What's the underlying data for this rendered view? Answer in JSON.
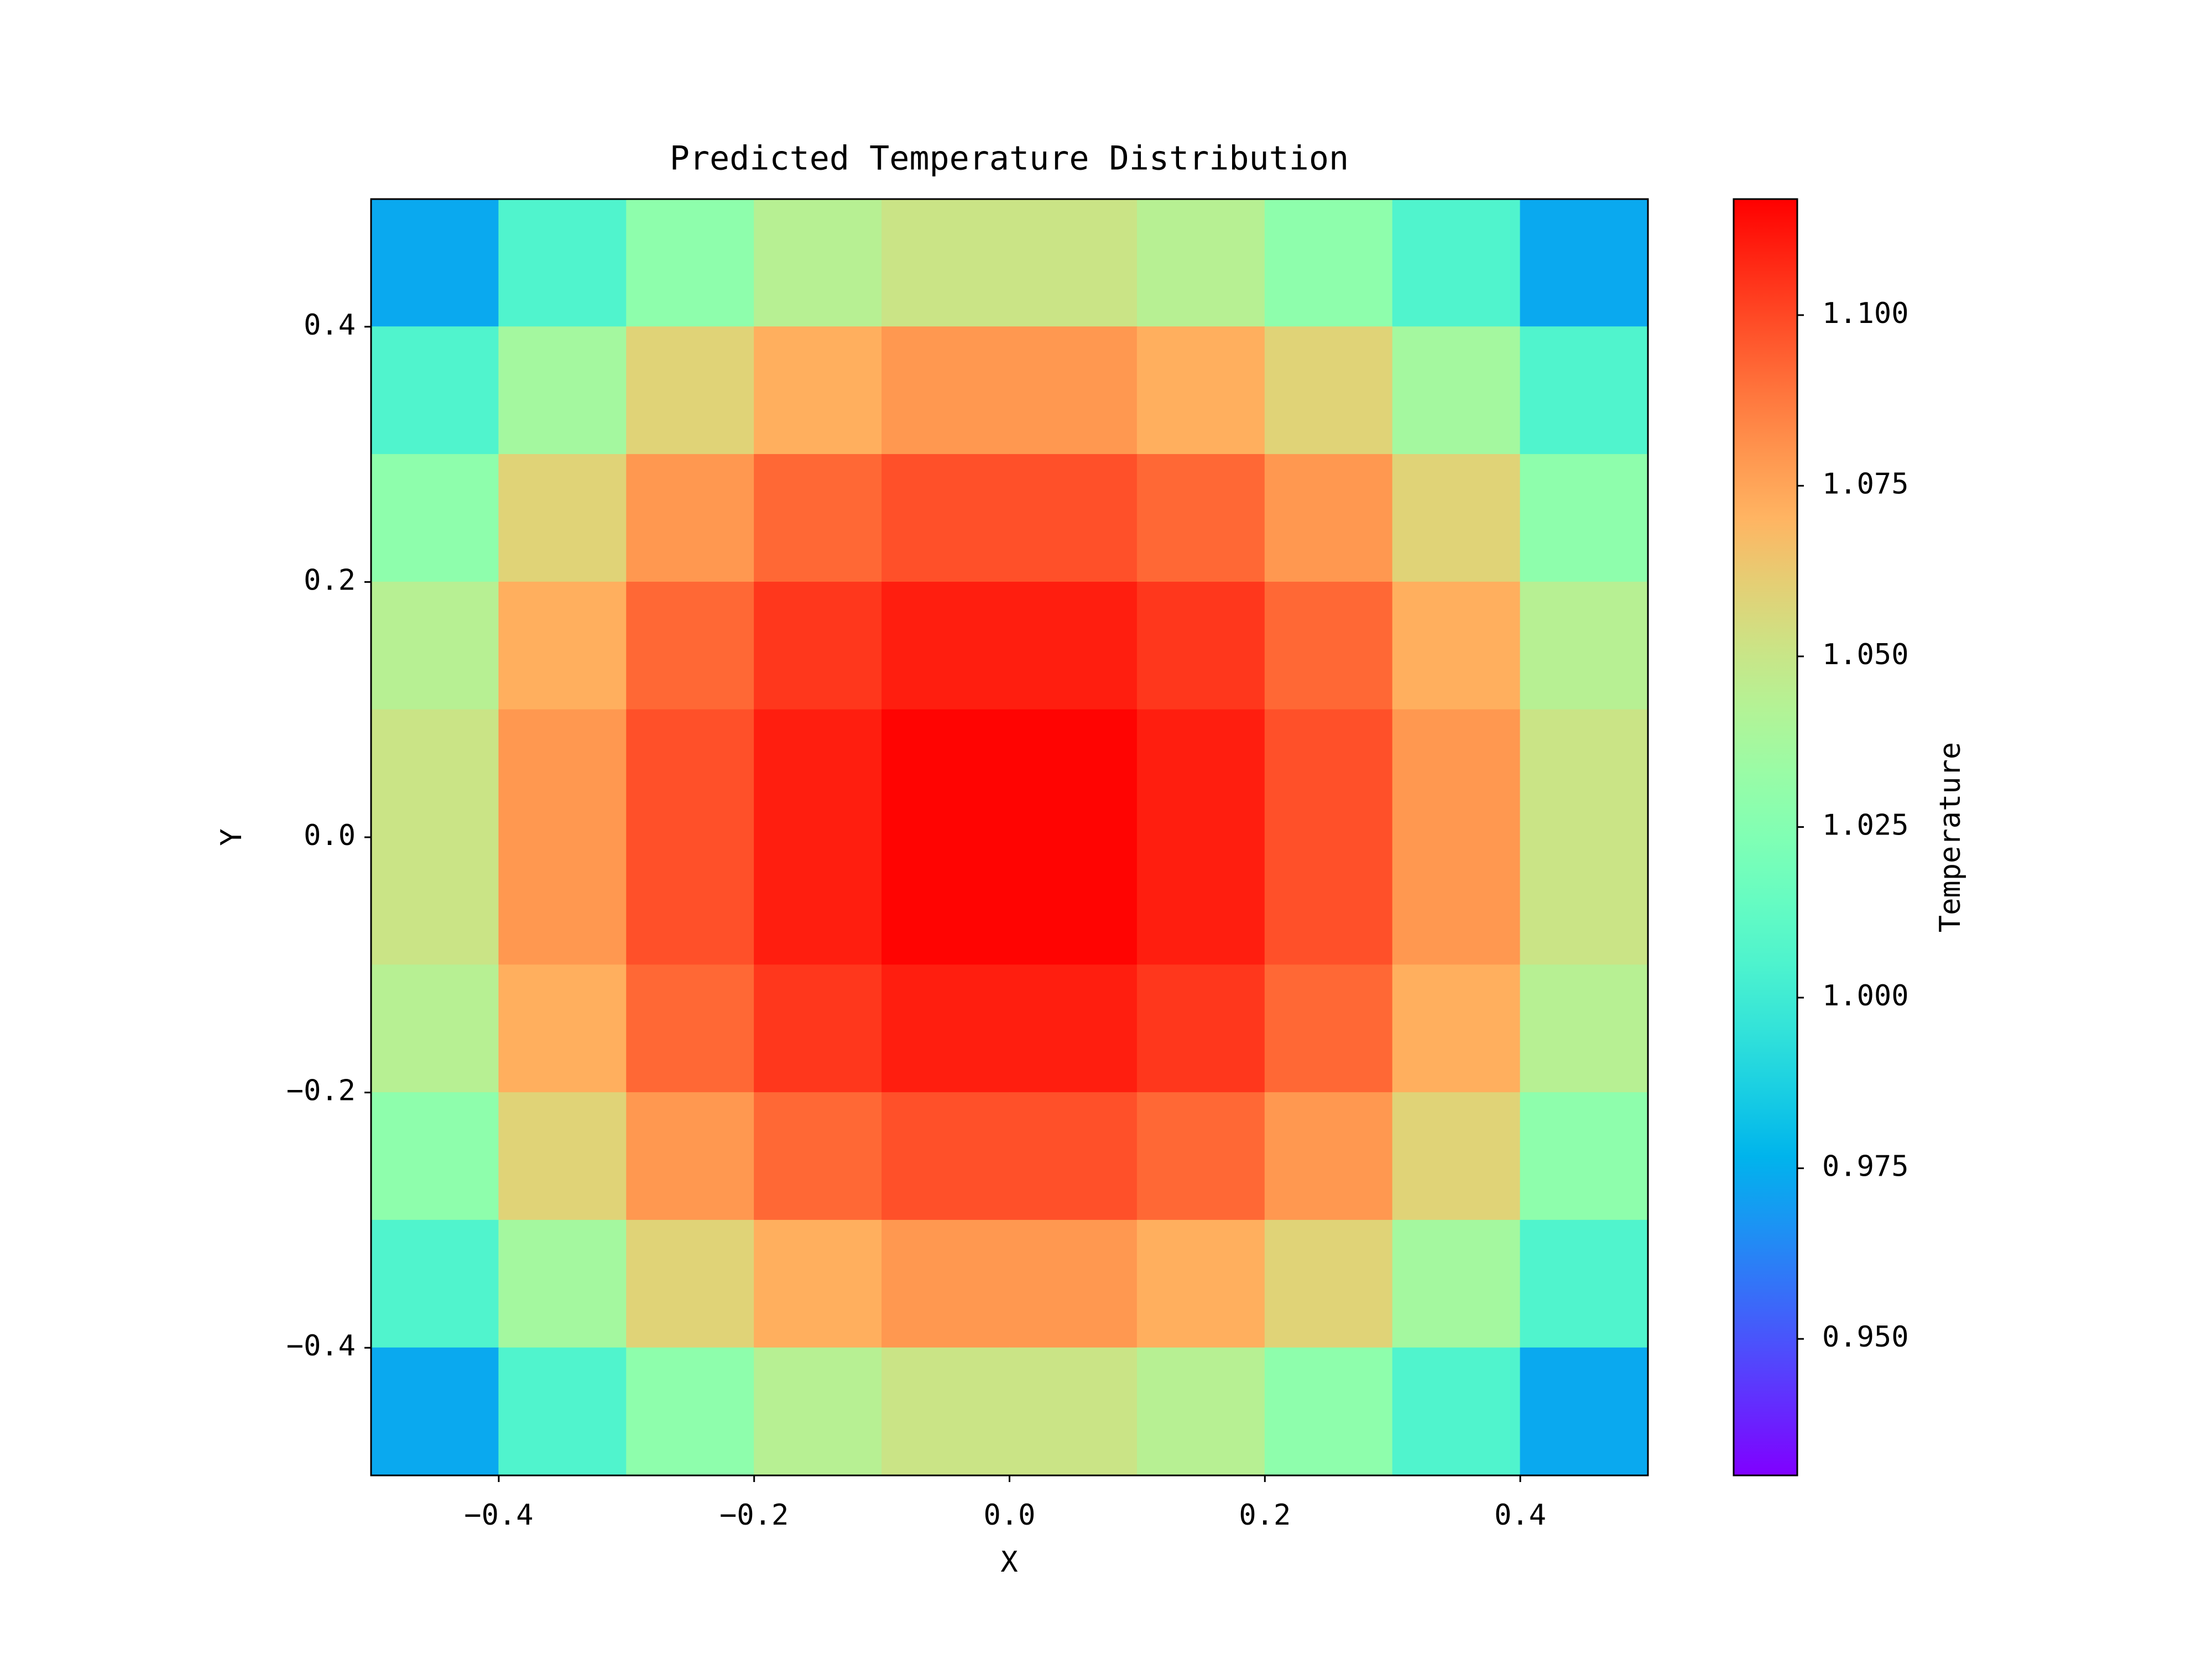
{
  "chart_data": {
    "type": "heatmap",
    "title": "Predicted Temperature Distribution",
    "x_label": "X",
    "y_label": "Y",
    "colorbar_label": "Temperature",
    "colormap": "rainbow",
    "x": [
      -0.45,
      -0.35,
      -0.25,
      -0.15,
      -0.05,
      0.05,
      0.15,
      0.25,
      0.35,
      0.45
    ],
    "y": [
      0.45,
      0.35,
      0.25,
      0.15,
      0.05,
      -0.05,
      -0.15,
      -0.25,
      -0.35,
      -0.45
    ],
    "z": [
      [
        0.973,
        1.006,
        1.029,
        1.044,
        1.051,
        1.051,
        1.044,
        1.029,
        1.006,
        0.973
      ],
      [
        1.006,
        1.037,
        1.059,
        1.072,
        1.079,
        1.079,
        1.072,
        1.059,
        1.037,
        1.006
      ],
      [
        1.029,
        1.059,
        1.079,
        1.092,
        1.098,
        1.098,
        1.092,
        1.079,
        1.059,
        1.029
      ],
      [
        1.044,
        1.072,
        1.092,
        1.104,
        1.11,
        1.11,
        1.104,
        1.092,
        1.072,
        1.044
      ],
      [
        1.051,
        1.079,
        1.098,
        1.11,
        1.116,
        1.116,
        1.11,
        1.098,
        1.079,
        1.051
      ],
      [
        1.051,
        1.079,
        1.098,
        1.11,
        1.116,
        1.116,
        1.11,
        1.098,
        1.079,
        1.051
      ],
      [
        1.044,
        1.072,
        1.092,
        1.104,
        1.11,
        1.11,
        1.104,
        1.092,
        1.072,
        1.044
      ],
      [
        1.029,
        1.059,
        1.079,
        1.092,
        1.098,
        1.098,
        1.092,
        1.079,
        1.059,
        1.029
      ],
      [
        1.006,
        1.037,
        1.059,
        1.072,
        1.079,
        1.079,
        1.072,
        1.059,
        1.037,
        1.006
      ],
      [
        0.973,
        1.006,
        1.029,
        1.044,
        1.051,
        1.051,
        1.044,
        1.029,
        1.006,
        0.973
      ]
    ],
    "xlim": [
      -0.5,
      0.5
    ],
    "ylim": [
      -0.5,
      0.5
    ],
    "xticks": [
      {
        "value": -0.4,
        "label": "−0.4"
      },
      {
        "value": -0.2,
        "label": "−0.2"
      },
      {
        "value": 0,
        "label": "0.0"
      },
      0.2,
      0.4
    ],
    "yticks": [
      {
        "value": -0.4,
        "label": "−0.4"
      },
      {
        "value": -0.2,
        "label": "−0.2"
      },
      {
        "value": 0,
        "label": "0.0"
      },
      0.2,
      0.4
    ],
    "clim": [
      0.93,
      1.117
    ],
    "cticks": [
      {
        "value": 0.95,
        "label": "0.950"
      },
      {
        "value": 0.975,
        "label": "0.975"
      },
      {
        "value": 1,
        "label": "1.000"
      },
      {
        "value": 1.025,
        "label": "1.025"
      },
      {
        "value": 1.05,
        "label": "1.050"
      },
      {
        "value": 1.075,
        "label": "1.075"
      },
      {
        "value": 1.1,
        "label": "1.100"
      }
    ]
  }
}
